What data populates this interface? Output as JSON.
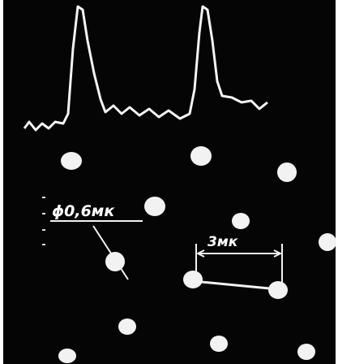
{
  "labels": {
    "diameter": "ϕ0,6мк",
    "spacing": "3мк"
  }
}
